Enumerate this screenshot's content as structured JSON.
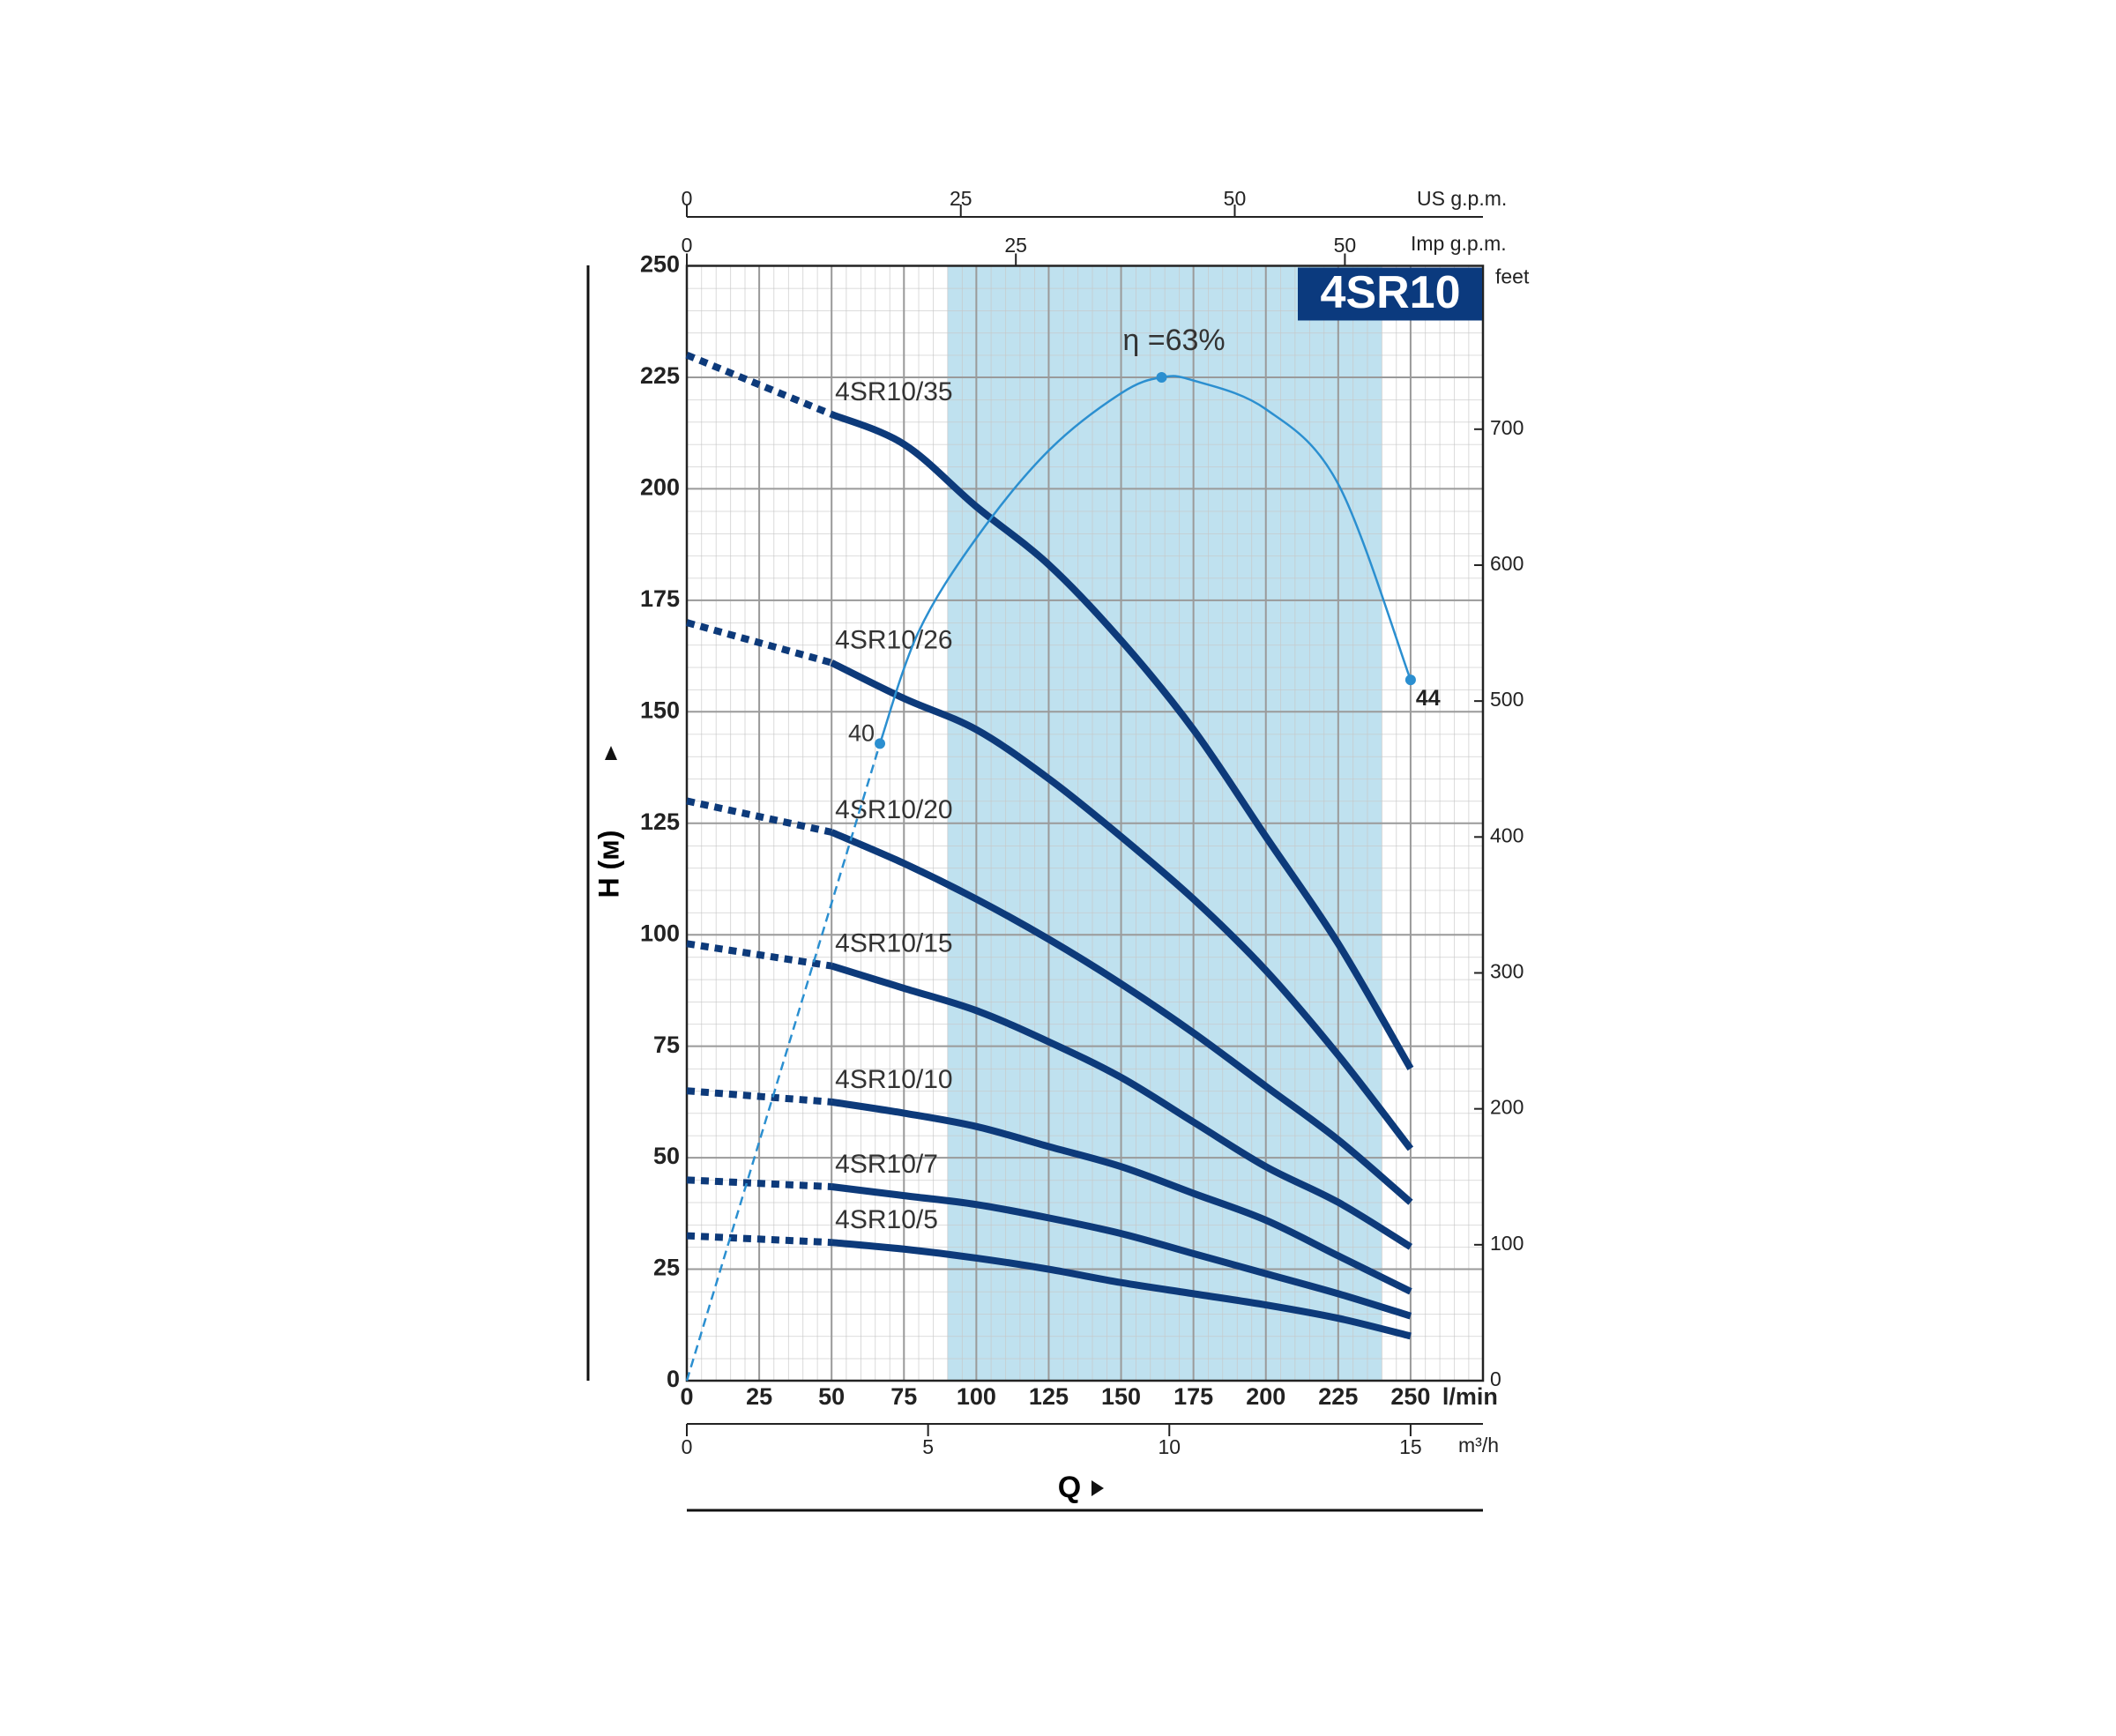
{
  "chart_data": {
    "type": "line",
    "title": "4SR10",
    "xlabel": "l/min",
    "ylabel": "H (м)",
    "quantity_label": "Q",
    "xlim": [
      0,
      275
    ],
    "xticks": [
      0,
      25,
      50,
      75,
      100,
      125,
      150,
      175,
      200,
      225,
      250
    ],
    "ylim": [
      0,
      250
    ],
    "yticks": [
      0,
      25,
      50,
      75,
      100,
      125,
      150,
      175,
      200,
      225,
      250
    ],
    "y2label": "feet",
    "y2lim": [
      0,
      820.2
    ],
    "y2ticks": [
      0,
      100,
      200,
      300,
      400,
      500,
      600,
      700
    ],
    "top_axes": [
      {
        "label": "US g.p.m.",
        "xlim": [
          0,
          72.65
        ],
        "xticks": [
          0,
          25,
          50
        ]
      },
      {
        "label": "Imp g.p.m.",
        "xlim": [
          0,
          60.49
        ],
        "xticks": [
          0,
          25,
          50
        ]
      }
    ],
    "bottom_axis": {
      "label": "m³/h",
      "xlim": [
        0,
        16.5
      ],
      "xticks": [
        0,
        5,
        10,
        15
      ]
    },
    "grid": true,
    "shaded_range": [
      90,
      240
    ],
    "shade_color": "#bfe1ef",
    "x": [
      0,
      50,
      75,
      100,
      125,
      150,
      175,
      200,
      225,
      250
    ],
    "series": [
      {
        "name": "4SR10/35",
        "color": "#0d3a7a",
        "values": [
          230,
          216.7,
          210,
          196,
          183,
          166,
          146,
          122,
          98,
          70
        ]
      },
      {
        "name": "4SR10/26",
        "color": "#0d3a7a",
        "values": [
          170,
          161,
          153,
          146,
          135,
          122,
          108,
          92,
          73,
          52
        ]
      },
      {
        "name": "4SR10/20",
        "color": "#0d3a7a",
        "values": [
          130,
          123,
          116,
          108,
          99,
          89,
          78,
          66,
          54,
          40
        ]
      },
      {
        "name": "4SR10/15",
        "color": "#0d3a7a",
        "values": [
          98,
          93,
          88,
          83,
          76,
          68,
          58,
          48,
          40,
          30
        ]
      },
      {
        "name": "4SR10/10",
        "color": "#0d3a7a",
        "values": [
          65,
          62.5,
          60,
          57,
          52.5,
          48,
          42,
          36,
          28,
          20
        ]
      },
      {
        "name": "4SR10/7",
        "color": "#0d3a7a",
        "values": [
          45,
          43.5,
          41.5,
          39.5,
          36.5,
          33,
          28.5,
          24,
          19.5,
          14.5
        ]
      },
      {
        "name": "4SR10/5",
        "color": "#0d3a7a",
        "values": [
          32.5,
          31,
          29.5,
          27.5,
          25,
          22,
          19.5,
          17,
          14,
          10
        ]
      }
    ],
    "efficiency": {
      "color": "#2b8fd0",
      "lim": [
        0,
        70
      ],
      "dashed": {
        "x": [
          0,
          66.7
        ],
        "values": [
          0,
          40
        ]
      },
      "solid": {
        "x": [
          66.7,
          80,
          100,
          125,
          150,
          164,
          175,
          200,
          225,
          250
        ],
        "values": [
          40,
          47,
          52.9,
          58.4,
          62,
          63,
          62.8,
          61,
          56.3,
          44
        ]
      },
      "points": [
        {
          "x": 164,
          "value": 63,
          "label": "η =63%"
        },
        {
          "x": 66.7,
          "value": 40,
          "label": "40"
        },
        {
          "x": 250,
          "value": 44,
          "label": "44"
        }
      ]
    }
  }
}
